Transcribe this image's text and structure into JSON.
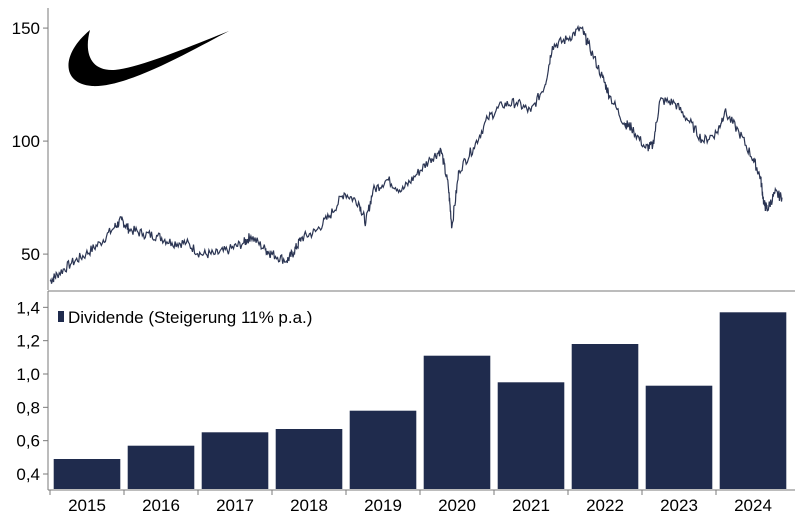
{
  "logo": {
    "icon": "swoosh-logo-icon",
    "color": "#000000"
  },
  "chart_data": [
    {
      "type": "line",
      "x_range": [
        2014.5,
        2024.7
      ],
      "y_ticks": [
        "150",
        "100",
        "50"
      ],
      "y_tick_values": [
        150,
        100,
        50
      ],
      "ylim": [
        35,
        158
      ],
      "grid": false,
      "line_color": "#2b3553",
      "points": [
        [
          2014.5,
          38
        ],
        [
          2014.6,
          41
        ],
        [
          2014.8,
          46
        ],
        [
          2015.0,
          50
        ],
        [
          2015.2,
          55
        ],
        [
          2015.4,
          62
        ],
        [
          2015.5,
          65
        ],
        [
          2015.6,
          61
        ],
        [
          2015.8,
          59
        ],
        [
          2016.0,
          58
        ],
        [
          2016.2,
          55
        ],
        [
          2016.4,
          55
        ],
        [
          2016.6,
          50
        ],
        [
          2016.8,
          50
        ],
        [
          2017.0,
          52
        ],
        [
          2017.2,
          55
        ],
        [
          2017.3,
          58
        ],
        [
          2017.5,
          52
        ],
        [
          2017.6,
          50
        ],
        [
          2017.8,
          47
        ],
        [
          2017.9,
          51
        ],
        [
          2018.0,
          57
        ],
        [
          2018.2,
          60
        ],
        [
          2018.4,
          67
        ],
        [
          2018.6,
          77
        ],
        [
          2018.8,
          73
        ],
        [
          2018.9,
          64
        ],
        [
          2019.0,
          78
        ],
        [
          2019.2,
          83
        ],
        [
          2019.4,
          78
        ],
        [
          2019.6,
          85
        ],
        [
          2019.8,
          92
        ],
        [
          2019.95,
          96
        ],
        [
          2020.05,
          80
        ],
        [
          2020.1,
          62
        ],
        [
          2020.2,
          87
        ],
        [
          2020.4,
          97
        ],
        [
          2020.6,
          110
        ],
        [
          2020.8,
          116
        ],
        [
          2021.0,
          117
        ],
        [
          2021.2,
          113
        ],
        [
          2021.4,
          125
        ],
        [
          2021.5,
          142
        ],
        [
          2021.7,
          145
        ],
        [
          2021.9,
          150
        ],
        [
          2022.0,
          143
        ],
        [
          2022.2,
          128
        ],
        [
          2022.3,
          120
        ],
        [
          2022.5,
          108
        ],
        [
          2022.6,
          106
        ],
        [
          2022.8,
          97
        ],
        [
          2022.9,
          98
        ],
        [
          2023.0,
          118
        ],
        [
          2023.2,
          117
        ],
        [
          2023.4,
          109
        ],
        [
          2023.6,
          100
        ],
        [
          2023.8,
          104
        ],
        [
          2023.9,
          113
        ],
        [
          2024.1,
          104
        ],
        [
          2024.3,
          92
        ],
        [
          2024.4,
          84
        ],
        [
          2024.45,
          72
        ],
        [
          2024.5,
          70
        ],
        [
          2024.6,
          77
        ],
        [
          2024.7,
          75
        ]
      ]
    },
    {
      "type": "bar",
      "categories": [
        "2015",
        "2016",
        "2017",
        "2018",
        "2019",
        "2020",
        "2021",
        "2022",
        "2023",
        "2024"
      ],
      "values": [
        0.49,
        0.57,
        0.65,
        0.67,
        0.78,
        1.11,
        0.95,
        1.18,
        0.93,
        1.37
      ],
      "y_ticks": [
        "1,4",
        "1,2",
        "1,0",
        "0,8",
        "0,6",
        "0,4"
      ],
      "y_tick_values": [
        1.4,
        1.2,
        1.0,
        0.8,
        0.6,
        0.4
      ],
      "ylim": [
        0.31,
        1.48
      ],
      "legend": "Dividende (Steigerung 11% p.a.)",
      "legend_placement": "top-left",
      "bar_color": "#1f2b4d",
      "grid": false
    }
  ]
}
